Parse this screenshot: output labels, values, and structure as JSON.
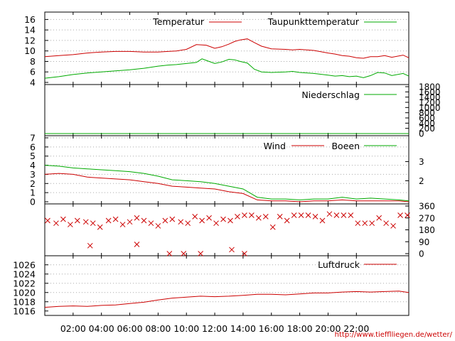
{
  "chart_data": [
    {
      "panel": "temperature",
      "type": "line",
      "series": [
        {
          "name": "Temperatur",
          "color": "#cc0000",
          "x": [
            0,
            1,
            2,
            3,
            4,
            5,
            6,
            7,
            8,
            8.7,
            9.3,
            10,
            10.7,
            11.4,
            12,
            12.5,
            13,
            13.4,
            13.8,
            14.3,
            14.8,
            15.3,
            16,
            17,
            17.5,
            18,
            19,
            20,
            20.5,
            21,
            21.5,
            22,
            22.5,
            23,
            23.5,
            24,
            24.5,
            25.3,
            25.7
          ],
          "y": [
            8.9,
            9.1,
            9.3,
            9.6,
            9.8,
            9.9,
            9.9,
            9.8,
            9.8,
            9.9,
            10,
            10.3,
            11.2,
            11.1,
            10.5,
            10.8,
            11.3,
            11.8,
            12.1,
            12.3,
            11.6,
            10.9,
            10.4,
            10.3,
            10.2,
            10.3,
            10.1,
            9.6,
            9.4,
            9.1,
            9,
            8.7,
            8.6,
            8.9,
            8.9,
            9.1,
            8.8,
            9.2,
            8.7
          ]
        },
        {
          "name": "Taupunkttemperatur",
          "color": "#00aa00",
          "x": [
            0,
            1,
            2,
            3,
            4,
            5,
            6,
            7,
            8,
            8.7,
            9.3,
            10,
            10.7,
            11.1,
            11.4,
            12,
            12.5,
            13,
            13.4,
            13.8,
            14.3,
            14.8,
            15.3,
            16,
            17,
            17.5,
            18,
            19,
            20,
            20.5,
            21,
            21.5,
            22,
            22.5,
            23,
            23.5,
            24,
            24.5,
            25.3,
            25.7
          ],
          "y": [
            4.8,
            5.1,
            5.5,
            5.8,
            6.0,
            6.2,
            6.4,
            6.7,
            7.1,
            7.3,
            7.4,
            7.6,
            7.8,
            8.5,
            8.2,
            7.6,
            7.9,
            8.4,
            8.3,
            8.0,
            7.7,
            6.5,
            6.0,
            5.9,
            6.0,
            6.1,
            5.9,
            5.7,
            5.4,
            5.2,
            5.3,
            5.1,
            5.2,
            4.9,
            5.3,
            5.9,
            5.8,
            5.3,
            5.7,
            5.2
          ]
        }
      ],
      "ylim": [
        4,
        17
      ],
      "y_ticks": [
        "4",
        "6",
        "8",
        "10",
        "12",
        "14",
        "16"
      ],
      "grid": true,
      "legend": "top-right"
    },
    {
      "panel": "precipitation",
      "type": "line",
      "series": [
        {
          "name": "Niederschlag",
          "color": "#00aa00",
          "x": [
            0,
            25.7
          ],
          "y": [
            0,
            0
          ]
        }
      ],
      "ylim": [
        0,
        1800
      ],
      "y_ticks_right": [
        "0",
        "200",
        "400",
        "600",
        "800",
        "1000",
        "1200",
        "1400",
        "1600",
        "1800"
      ],
      "legend": "top-right"
    },
    {
      "panel": "wind",
      "type": "line",
      "series": [
        {
          "name": "Wind",
          "color": "#cc0000",
          "x": [
            0,
            1,
            2,
            3,
            4,
            5,
            6,
            7,
            8,
            9,
            10,
            11,
            12,
            13,
            14,
            15,
            16,
            17,
            18,
            19,
            20,
            21,
            22,
            23,
            24,
            25,
            25.7
          ],
          "y": [
            3.0,
            3.1,
            3.0,
            2.7,
            2.6,
            2.5,
            2.4,
            2.2,
            2.0,
            1.7,
            1.6,
            1.5,
            1.4,
            1.1,
            0.9,
            0.2,
            0.1,
            0.1,
            0.0,
            0.1,
            0.1,
            0.2,
            0.1,
            0.1,
            0.1,
            0.1,
            0.0
          ]
        },
        {
          "name": "Boeen",
          "color": "#00aa00",
          "x": [
            0,
            1,
            2,
            3,
            4,
            5,
            6,
            7,
            8,
            9,
            10,
            11,
            12,
            13,
            14,
            15,
            16,
            17,
            18,
            19,
            20,
            21,
            22,
            23,
            24,
            25,
            25.7
          ],
          "y": [
            4.0,
            3.9,
            3.7,
            3.6,
            3.5,
            3.4,
            3.3,
            3.1,
            2.8,
            2.4,
            2.3,
            2.2,
            2.0,
            1.7,
            1.4,
            0.5,
            0.3,
            0.3,
            0.2,
            0.3,
            0.3,
            0.5,
            0.3,
            0.4,
            0.3,
            0.2,
            0.1
          ]
        }
      ],
      "ylim": [
        0,
        7
      ],
      "y_ticks": [
        "0",
        "1",
        "2",
        "3",
        "4",
        "5",
        "6",
        "7"
      ],
      "y_ticks_right": [
        "2",
        "3"
      ],
      "grid": true,
      "legend": "top-right"
    },
    {
      "panel": "wind_direction",
      "type": "scatter",
      "marker": "x",
      "series": [
        {
          "color": "#cc0000",
          "x": [
            0.2,
            0.8,
            1.3,
            1.8,
            2.3,
            2.9,
            3.4,
            3.9,
            4.5,
            5,
            5.5,
            6,
            6.5,
            7,
            7.5,
            8,
            8.5,
            9,
            9.6,
            10.1,
            10.6,
            11.1,
            11.6,
            12.1,
            12.6,
            13.1,
            13.6,
            14.1,
            14.6,
            15.1,
            15.6,
            16.1,
            16.6,
            17.1,
            17.6,
            18.1,
            18.6,
            19.1,
            19.6,
            20.1,
            20.6,
            21.1,
            21.6,
            22.1,
            22.6,
            23.1,
            23.6,
            24.1,
            24.6,
            25.1,
            25.6
          ],
          "y": [
            250,
            230,
            260,
            220,
            250,
            240,
            230,
            200,
            250,
            260,
            220,
            240,
            270,
            250,
            230,
            210,
            250,
            260,
            240,
            230,
            280,
            250,
            270,
            230,
            260,
            250,
            280,
            290,
            290,
            270,
            280,
            200,
            280,
            250,
            290,
            290,
            290,
            280,
            250,
            300,
            290,
            290,
            290,
            230,
            230,
            230,
            270,
            230,
            210,
            290,
            290
          ]
        },
        {
          "color": "#cc0000",
          "x": [
            3.2,
            6.5,
            8.8,
            9.8,
            11.0,
            13.2,
            14.1
          ],
          "y": [
            60,
            70,
            0,
            0,
            0,
            30,
            0
          ]
        }
      ],
      "ylim": [
        0,
        360
      ],
      "y_ticks_right": [
        "0",
        "90",
        "180",
        "270",
        "360"
      ]
    },
    {
      "panel": "pressure",
      "type": "line",
      "series": [
        {
          "name": "Luftdruck",
          "color": "#cc0000",
          "x": [
            0,
            1,
            2,
            3,
            4,
            5,
            6,
            7,
            8,
            9,
            10,
            11,
            12,
            13,
            14,
            15,
            16,
            17,
            18,
            19,
            20,
            21,
            22,
            23,
            24,
            25,
            25.7
          ],
          "y": [
            1016.8,
            1017.0,
            1017.1,
            1017.0,
            1017.2,
            1017.3,
            1017.6,
            1017.9,
            1018.4,
            1018.8,
            1019.0,
            1019.2,
            1019.1,
            1019.2,
            1019.4,
            1019.6,
            1019.6,
            1019.5,
            1019.7,
            1019.9,
            1019.9,
            1020.1,
            1020.2,
            1020.1,
            1020.2,
            1020.3,
            1020.0
          ]
        }
      ],
      "ylim": [
        1015.5,
        1027.5
      ],
      "y_ticks": [
        "1016",
        "1018",
        "1020",
        "1022",
        "1024",
        "1026"
      ],
      "grid": true,
      "legend": "top-right"
    }
  ],
  "x_axis": {
    "range": [
      0,
      25.7
    ],
    "tick_labels": [
      "02:00",
      "04:00",
      "06:00",
      "08:00",
      "10:00",
      "12:00",
      "14:00",
      "16:00",
      "18:00",
      "20:00",
      "22:00"
    ]
  },
  "footer": {
    "url": "http://www.tiefflliegen.de/wetter/"
  }
}
